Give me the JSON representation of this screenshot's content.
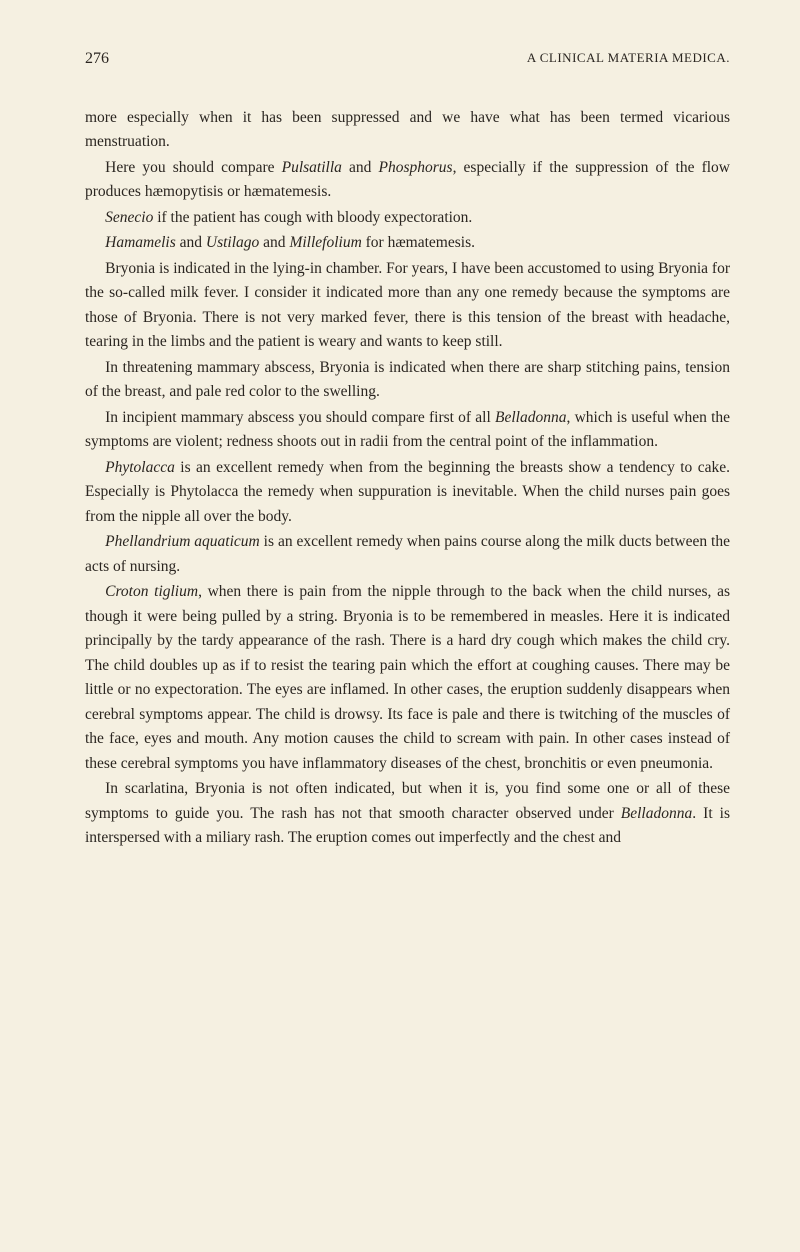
{
  "page_number": "276",
  "running_title": "A CLINICAL MATERIA MEDICA.",
  "paragraphs": [
    {
      "html": "more especially when it has been suppressed and we have what has been termed vicarious menstruation."
    },
    {
      "html": "Here you should compare <span class='italic'>Pulsatilla</span> and <span class='italic'>Phosphorus</span>, especially if the suppression of the flow produces hæmopytisis or hæmatemesis."
    },
    {
      "html": "<span class='italic'>Senecio</span> if the patient has cough with bloody expectoration."
    },
    {
      "html": "<span class='italic'>Hamamelis</span> and <span class='italic'>Ustilago</span> and <span class='italic'>Millefolium</span> for hæmatemesis."
    },
    {
      "html": "Bryonia is indicated in the lying-in chamber. For years, I have been accustomed to using Bryonia for the so-called milk fever. I consider it indicated more than any one remedy because the symptoms are those of Bryonia. There is not very marked fever, there is this tension of the breast with headache, tearing in the limbs and the patient is weary and wants to keep still."
    },
    {
      "html": "In threatening mammary abscess, Bryonia is indicated when there are sharp stitching pains, tension of the breast, and pale red color to the swelling."
    },
    {
      "html": "In incipient mammary abscess you should compare first of all <span class='italic'>Belladonna</span>, which is useful when the symptoms are violent; redness shoots out in radii from the central point of the inflammation."
    },
    {
      "html": "<span class='italic'>Phytolacca</span> is an excellent remedy when from the beginning the breasts show a tendency to cake. Especially is Phytolacca the remedy when suppuration is inevitable. When the child nurses pain goes from the nipple all over the body."
    },
    {
      "html": "<span class='italic'>Phellandrium aquaticum</span> is an excellent remedy when pains course along the milk ducts between the acts of nursing."
    },
    {
      "html": "<span class='italic'>Croton tiglium</span>, when there is pain from the nipple through to the back when the child nurses, as though it were being pulled by a string. Bryonia is to be remembered in measles. Here it is indicated principally by the tardy appearance of the rash. There is a hard dry cough which makes the child cry. The child doubles up as if to resist the tearing pain which the effort at coughing causes. There may be little or no expectoration. The eyes are inflamed. In other cases, the eruption suddenly disappears when cerebral symptoms appear. The child is drowsy. Its face is pale and there is twitching of the muscles of the face, eyes and mouth. Any motion causes the child to scream with pain. In other cases instead of these cerebral symptoms you have inflammatory diseases of the chest, bronchitis or even pneumonia."
    },
    {
      "html": "In scarlatina, Bryonia is not often indicated, but when it is, you find some one or all of these symptoms to guide you. The rash has not that smooth character observed under <span class='italic'>Belladonna</span>. It is interspersed with a miliary rash. The eruption comes out imperfectly and the chest and"
    }
  ]
}
